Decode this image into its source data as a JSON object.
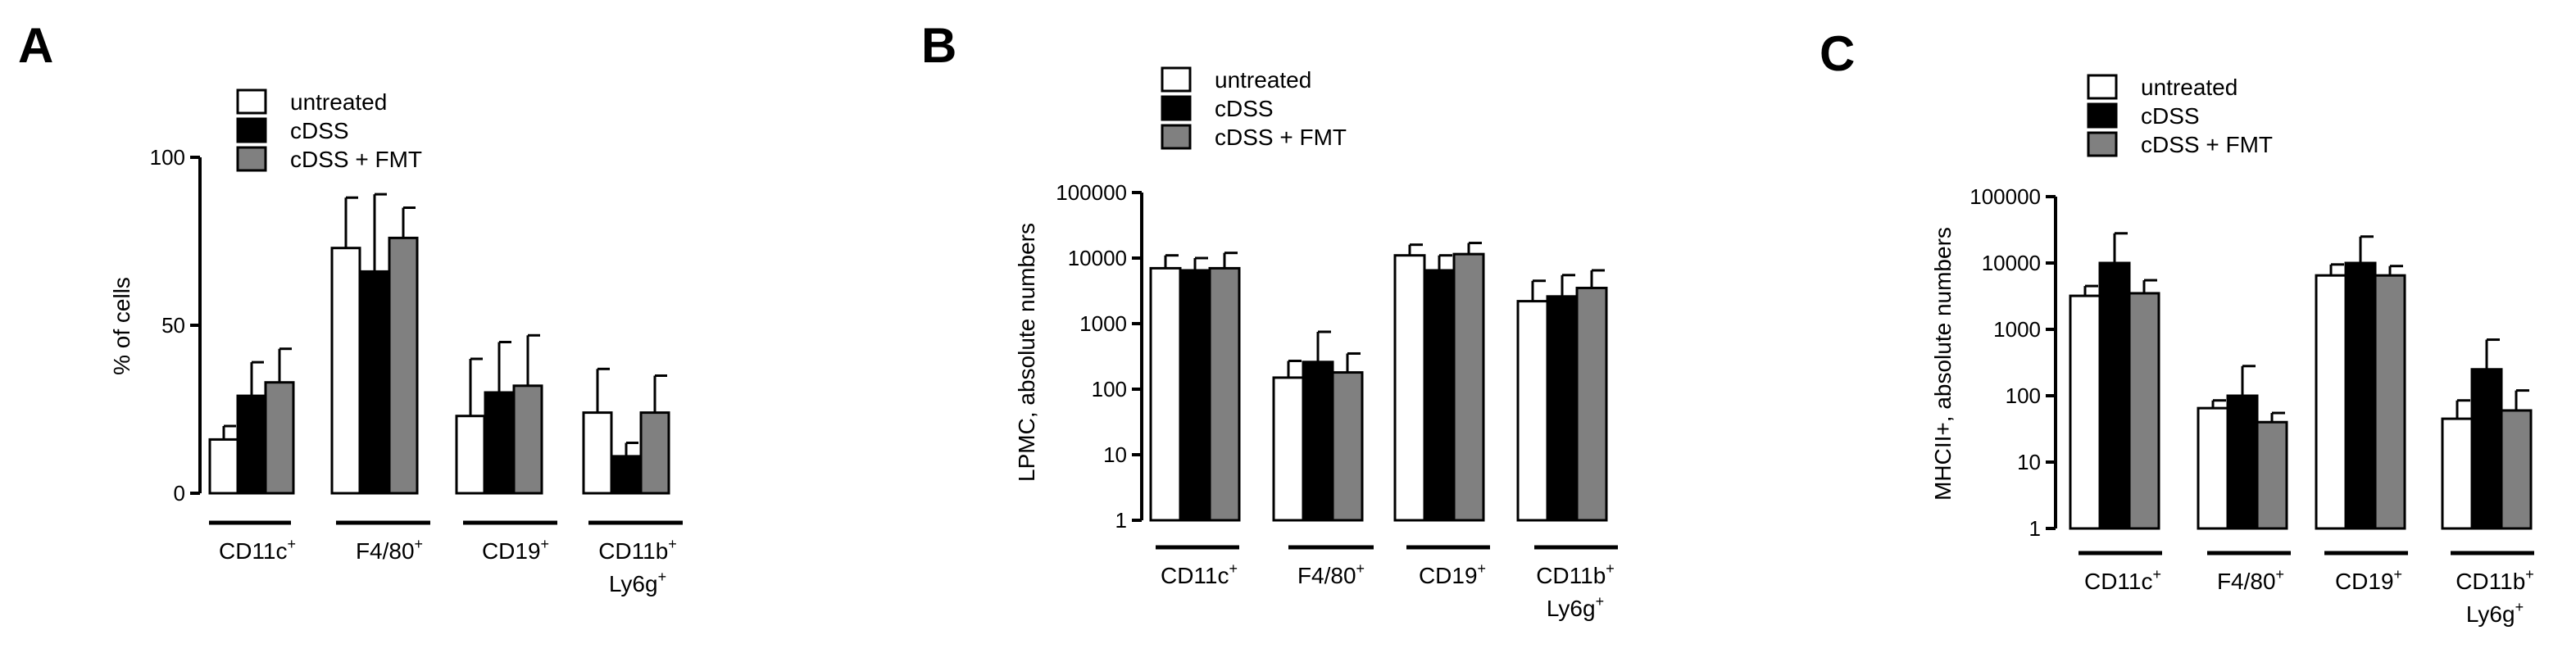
{
  "colors": {
    "untreated": "#ffffff",
    "cDSS": "#000000",
    "cDSS_FMT": "#808080",
    "stroke": "#000000"
  },
  "chart_data": [
    {
      "type": "bar",
      "panel_label": "A",
      "ylabel": "% of cells",
      "scale": "linear",
      "ylim": [
        0,
        100
      ],
      "yticks": [
        "0",
        "50",
        "100"
      ],
      "categories": [
        {
          "line1": "CD11c",
          "sup1": "+",
          "line2": "",
          "sup2": ""
        },
        {
          "line1": "F4/80",
          "sup1": "+",
          "line2": "",
          "sup2": ""
        },
        {
          "line1": "CD19",
          "sup1": "+",
          "line2": "",
          "sup2": ""
        },
        {
          "line1": "CD11b",
          "sup1": "+",
          "line2": "Ly6g",
          "sup2": "+"
        }
      ],
      "legend": [
        "untreated",
        "cDSS",
        "cDSS + FMT"
      ],
      "series": [
        {
          "name": "untreated",
          "values": [
            16,
            73,
            23,
            24
          ],
          "errors": [
            4,
            15,
            17,
            13
          ]
        },
        {
          "name": "cDSS",
          "values": [
            29,
            66,
            30,
            11
          ],
          "errors": [
            10,
            23,
            15,
            4
          ]
        },
        {
          "name": "cDSS + FMT",
          "values": [
            33,
            76,
            32,
            24
          ],
          "errors": [
            10,
            9,
            15,
            11
          ]
        }
      ]
    },
    {
      "type": "bar",
      "panel_label": "B",
      "ylabel": "LPMC, absolute numbers",
      "scale": "log",
      "ylim": [
        1,
        100000
      ],
      "yticks": [
        "1",
        "10",
        "100",
        "1000",
        "10000",
        "100000"
      ],
      "categories": [
        {
          "line1": "CD11c",
          "sup1": "+",
          "line2": "",
          "sup2": ""
        },
        {
          "line1": "F4/80",
          "sup1": "+",
          "line2": "",
          "sup2": ""
        },
        {
          "line1": "CD19",
          "sup1": "+",
          "line2": "",
          "sup2": ""
        },
        {
          "line1": "CD11b",
          "sup1": "+",
          "line2": "Ly6g",
          "sup2": "+"
        }
      ],
      "legend": [
        "untreated",
        "cDSS",
        "cDSS + FMT"
      ],
      "series": [
        {
          "name": "untreated",
          "values": [
            7000,
            150,
            11000,
            2200
          ],
          "errors_upper": [
            11000,
            270,
            16000,
            4500
          ]
        },
        {
          "name": "cDSS",
          "values": [
            6500,
            260,
            6500,
            2600
          ],
          "errors_upper": [
            10000,
            750,
            11000,
            5500
          ]
        },
        {
          "name": "cDSS + FMT",
          "values": [
            7000,
            180,
            11500,
            3500
          ],
          "errors_upper": [
            12000,
            350,
            17000,
            6500
          ]
        }
      ]
    },
    {
      "type": "bar",
      "panel_label": "C",
      "ylabel": "MHCII+, absolute numbers",
      "scale": "log",
      "ylim": [
        1,
        100000
      ],
      "yticks": [
        "1",
        "10",
        "100",
        "1000",
        "10000",
        "100000"
      ],
      "categories": [
        {
          "line1": "CD11c",
          "sup1": "+",
          "line2": "",
          "sup2": ""
        },
        {
          "line1": "F4/80",
          "sup1": "+",
          "line2": "",
          "sup2": ""
        },
        {
          "line1": "CD19",
          "sup1": "+",
          "line2": "",
          "sup2": ""
        },
        {
          "line1": "CD11b",
          "sup1": "+",
          "line2": "Ly6g",
          "sup2": "+"
        }
      ],
      "legend": [
        "untreated",
        "cDSS",
        "cDSS + FMT"
      ],
      "series": [
        {
          "name": "untreated",
          "values": [
            3200,
            65,
            6500,
            45
          ],
          "errors_upper": [
            4500,
            85,
            9500,
            85
          ]
        },
        {
          "name": "cDSS",
          "values": [
            10000,
            100,
            10000,
            250
          ],
          "errors_upper": [
            28000,
            280,
            25000,
            700
          ]
        },
        {
          "name": "cDSS + FMT",
          "values": [
            3500,
            40,
            6500,
            60
          ],
          "errors_upper": [
            5500,
            55,
            9000,
            120
          ]
        }
      ]
    }
  ]
}
